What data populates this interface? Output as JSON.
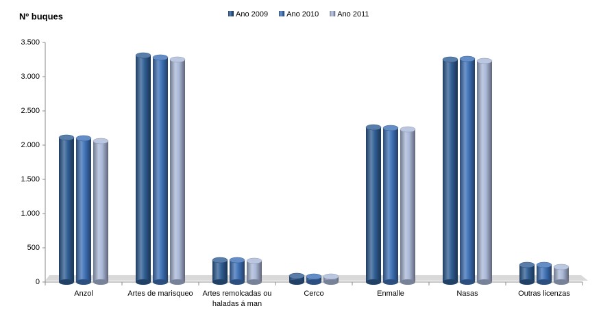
{
  "chart_data": {
    "type": "bar",
    "y_label": "Nº buques",
    "categories": [
      "Anzol",
      "Artes de marisqueo",
      "Artes remolcadas ou haladas  á man",
      "Cerco",
      "Enmalle",
      "Nasas",
      "Outras licenzas"
    ],
    "series": [
      {
        "name": "Ano 2009",
        "color": "#2f5d93",
        "values": [
          2110,
          3310,
          320,
          90,
          2260,
          3250,
          250
        ]
      },
      {
        "name": "Ano 2010",
        "color": "#3f71b6",
        "values": [
          2100,
          3280,
          320,
          80,
          2250,
          3260,
          250
        ]
      },
      {
        "name": "Ano 2011",
        "color": "#aab8d8",
        "values": [
          2060,
          3250,
          310,
          80,
          2230,
          3230,
          220
        ]
      }
    ],
    "ylim": [
      0,
      3500
    ],
    "yticks": [
      0,
      500,
      {
        "value": 1000,
        "label": "1.000"
      },
      {
        "value": 1500,
        "label": "1.500"
      },
      {
        "value": 2000,
        "label": "2.000"
      },
      {
        "value": 2500,
        "label": "2.500"
      },
      {
        "value": 3000,
        "label": "3.000"
      },
      {
        "value": 3500,
        "label": "3.500"
      }
    ],
    "legend": "top"
  }
}
